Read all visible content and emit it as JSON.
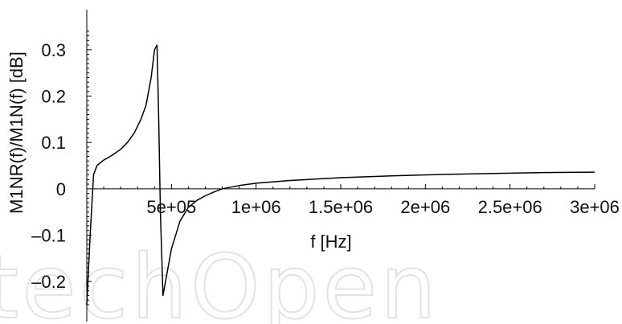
{
  "watermark": "techOpen",
  "chart_data": {
    "type": "line",
    "xlabel": "f [Hz]",
    "ylabel": "M1NR(f)/M1N(f) [dB]",
    "xlim": [
      0,
      3000000
    ],
    "ylim": [
      -0.25,
      0.35
    ],
    "grid": false,
    "legend": "none",
    "line_color": "#000000",
    "x_ticks": [
      {
        "value": 500000,
        "label": "5e+05"
      },
      {
        "value": 1000000,
        "label": "1e+06"
      },
      {
        "value": 1500000,
        "label": "1.5e+06"
      },
      {
        "value": 2000000,
        "label": "2e+06"
      },
      {
        "value": 2500000,
        "label": "2.5e+06"
      },
      {
        "value": 3000000,
        "label": "3e+06"
      }
    ],
    "y_ticks": [
      {
        "value": -0.2,
        "label": "–0.2"
      },
      {
        "value": -0.1,
        "label": "–0.1"
      },
      {
        "value": 0,
        "label": "0"
      },
      {
        "value": 0.1,
        "label": "0.1"
      },
      {
        "value": 0.2,
        "label": "0.2"
      },
      {
        "value": 0.3,
        "label": "0.3"
      }
    ],
    "series": [
      {
        "x": [
          0,
          20000,
          40000,
          60000,
          80000,
          100000,
          130000,
          160000,
          200000,
          240000,
          280000,
          320000,
          350000,
          380000,
          400000,
          415000,
          425000,
          435000,
          450000,
          470000,
          500000,
          550000,
          600000,
          650000,
          700000,
          750000,
          800000,
          900000,
          1000000,
          1200000,
          1500000,
          1800000,
          2100000,
          2400000,
          2700000,
          3000000
        ],
        "y": [
          -0.25,
          -0.1,
          0.03,
          0.05,
          0.056,
          0.062,
          0.068,
          0.075,
          0.085,
          0.1,
          0.12,
          0.15,
          0.18,
          0.24,
          0.3,
          0.31,
          0.15,
          -0.05,
          -0.23,
          -0.19,
          -0.13,
          -0.07,
          -0.04,
          -0.025,
          -0.015,
          -0.007,
          0.0,
          0.007,
          0.012,
          0.018,
          0.024,
          0.028,
          0.031,
          0.033,
          0.035,
          0.036
        ]
      }
    ]
  }
}
